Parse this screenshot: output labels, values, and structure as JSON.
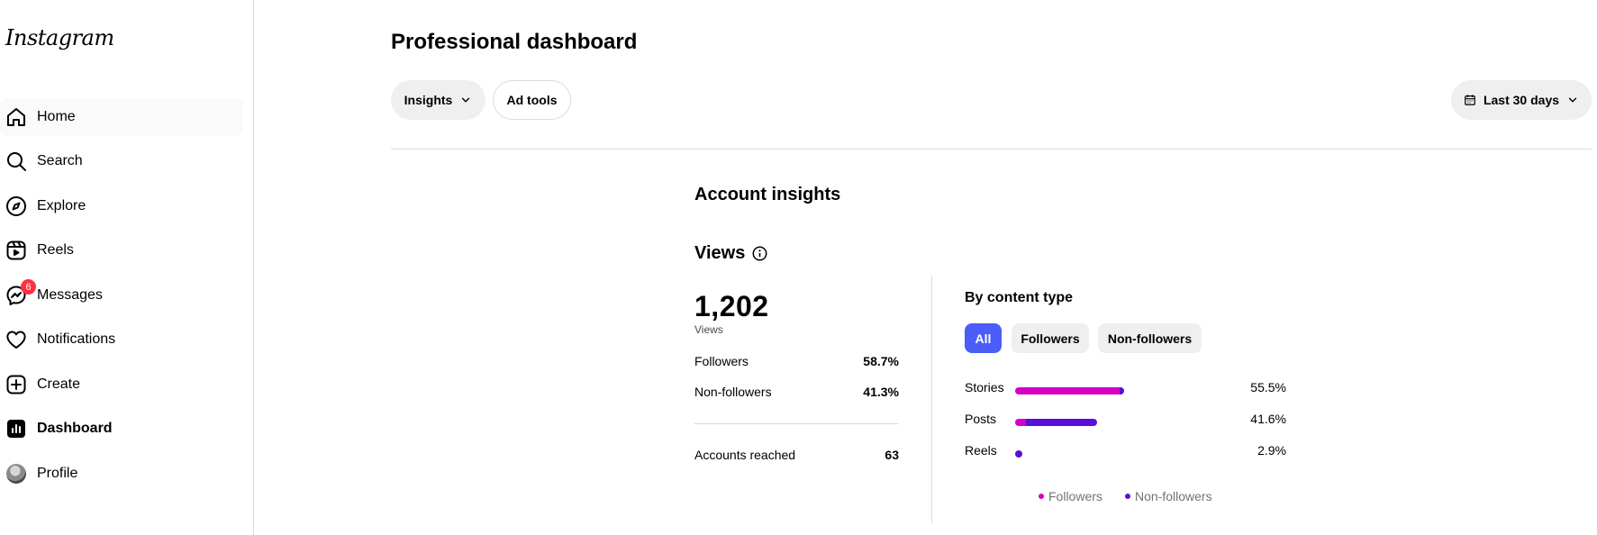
{
  "app": {
    "logo": "Instagram"
  },
  "sidebar": {
    "items": [
      {
        "label": "Home",
        "icon": "home-icon"
      },
      {
        "label": "Search",
        "icon": "search-icon"
      },
      {
        "label": "Explore",
        "icon": "compass-icon"
      },
      {
        "label": "Reels",
        "icon": "reels-icon"
      },
      {
        "label": "Messages",
        "icon": "messenger-icon",
        "badge": "6"
      },
      {
        "label": "Notifications",
        "icon": "heart-icon"
      },
      {
        "label": "Create",
        "icon": "plus-square-icon"
      },
      {
        "label": "Dashboard",
        "icon": "dashboard-icon"
      },
      {
        "label": "Profile",
        "icon": "avatar"
      }
    ]
  },
  "header": {
    "title": "Professional dashboard",
    "insights_label": "Insights",
    "adtools_label": "Ad tools",
    "range_label": "Last 30 days"
  },
  "insights": {
    "title": "Account insights",
    "views_title": "Views",
    "total": "1,202",
    "total_caption": "Views",
    "rows": [
      {
        "label": "Followers",
        "value": "58.7%"
      },
      {
        "label": "Non-followers",
        "value": "41.3%"
      }
    ],
    "reached_label": "Accounts reached",
    "reached_value": "63"
  },
  "content_type": {
    "title": "By content type",
    "chips": [
      "All",
      "Followers",
      "Non-followers"
    ],
    "active_chip": "All",
    "legend": [
      "Followers",
      "Non-followers"
    ],
    "colors": {
      "followers": "#d300c5",
      "non_followers": "#5b0fd6",
      "active_chip": "#4a5df9"
    }
  },
  "chart_data": {
    "type": "bar",
    "orientation": "horizontal",
    "stacked": true,
    "categories": [
      "Stories",
      "Posts",
      "Reels"
    ],
    "totals": [
      55.5,
      41.6,
      2.9
    ],
    "total_labels": [
      "55.5%",
      "41.6%",
      "2.9%"
    ],
    "series": [
      {
        "name": "Followers",
        "values": [
          53.0,
          5.5,
          0
        ]
      },
      {
        "name": "Non-followers",
        "values": [
          2.5,
          36.1,
          2.9
        ]
      }
    ],
    "xlim": [
      0,
      110
    ]
  }
}
